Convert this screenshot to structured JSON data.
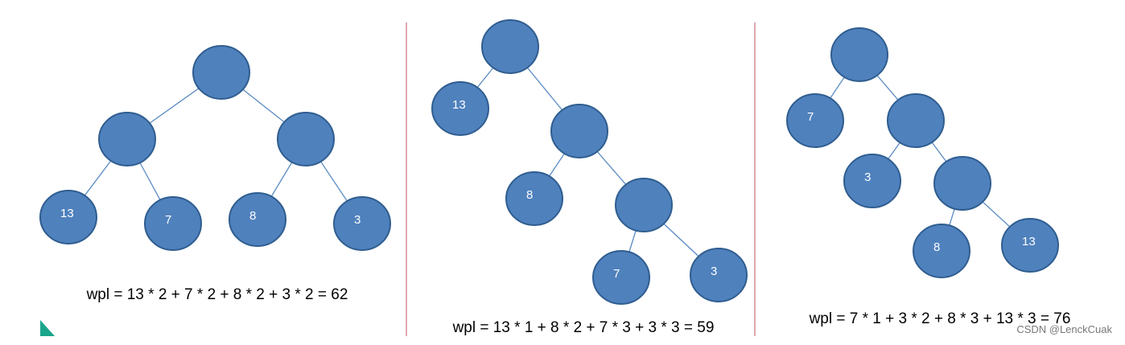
{
  "trees": [
    {
      "leaves": [
        {
          "label": "13"
        },
        {
          "label": "7"
        },
        {
          "label": "8"
        },
        {
          "label": "3"
        }
      ],
      "formula": "wpl = 13 * 2 + 7 * 2 + 8 * 2 + 3 * 2 = 62"
    },
    {
      "leaves": [
        {
          "label": "13"
        },
        {
          "label": "8"
        },
        {
          "label": "7"
        },
        {
          "label": "3"
        }
      ],
      "formula": "wpl = 13 * 1 + 8 * 2 + 7 * 3 + 3 * 3 = 59"
    },
    {
      "leaves": [
        {
          "label": "7"
        },
        {
          "label": "3"
        },
        {
          "label": "8"
        },
        {
          "label": "13"
        }
      ],
      "formula": "wpl = 7 * 1 + 3 * 2 + 8 * 3 + 13 * 3 = 76"
    }
  ],
  "watermark": "CSDN @LenckCuak"
}
